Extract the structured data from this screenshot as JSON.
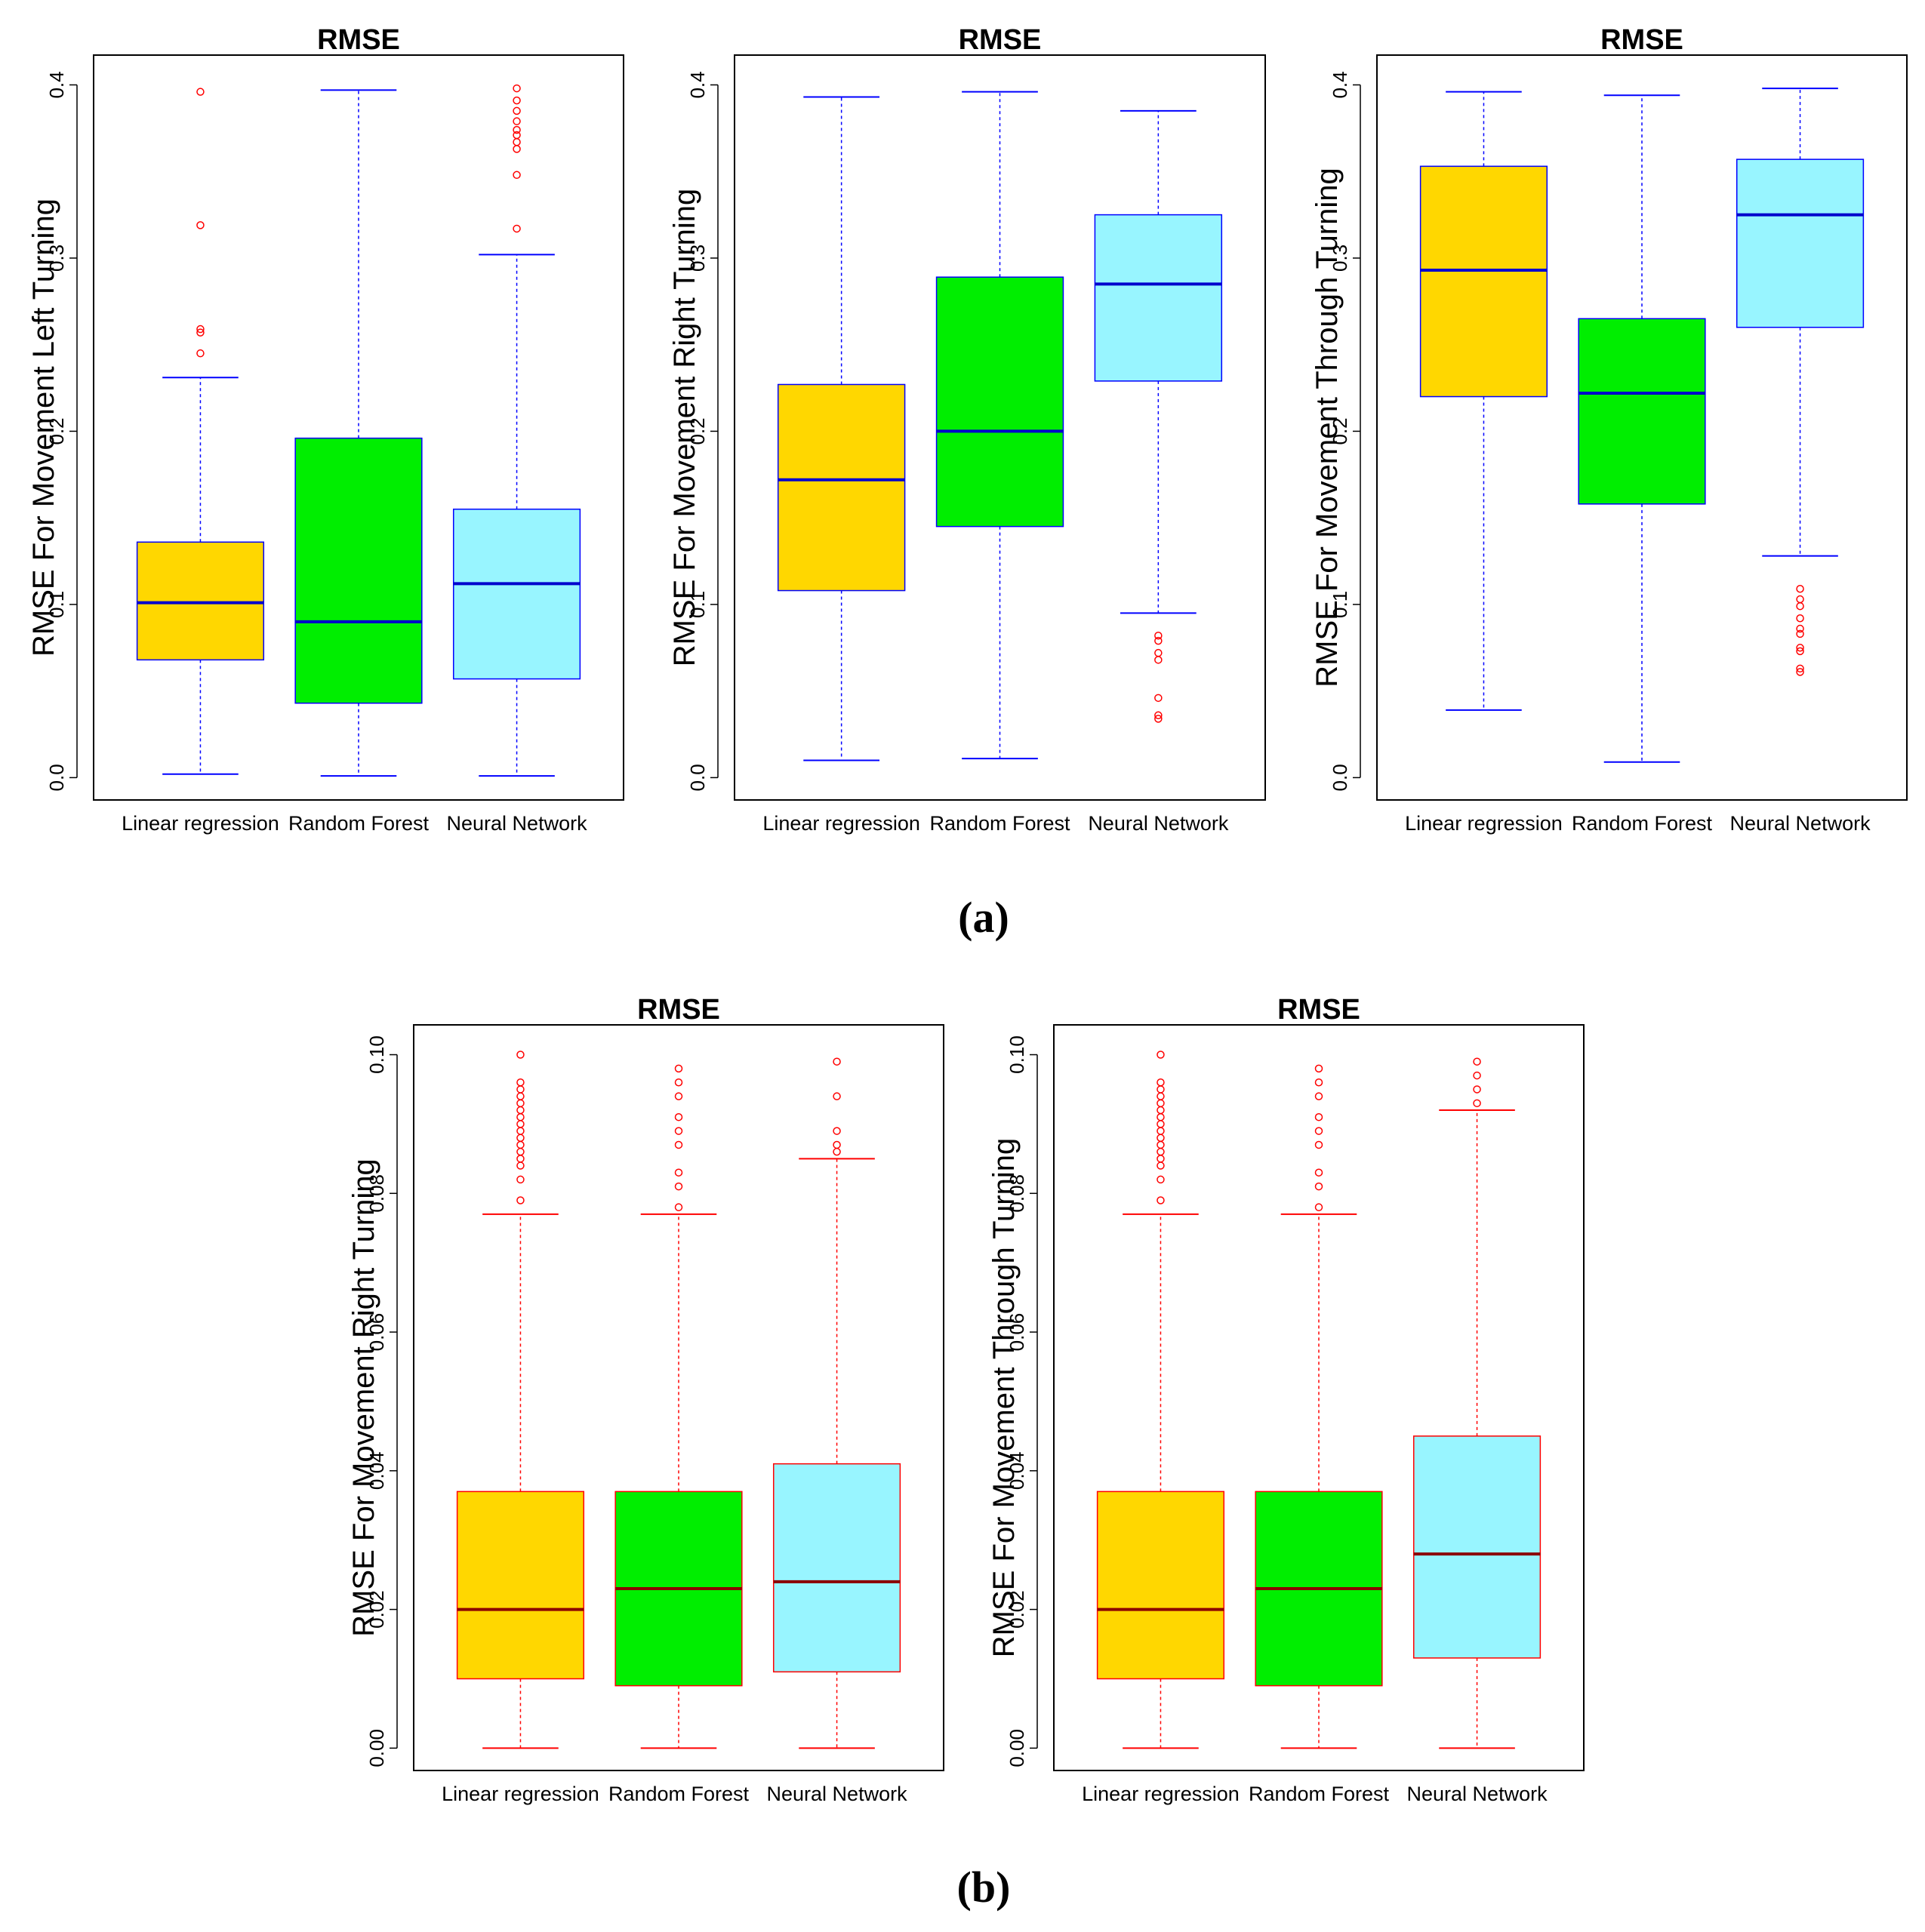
{
  "captions": [
    "(a)",
    "(b)"
  ],
  "chart_data": [
    {
      "type": "boxplot",
      "title": "RMSE",
      "ylabel": "RMSE For Movement Left Turning",
      "ylim": [
        0.0,
        0.4
      ],
      "yticks": [
        0.0,
        0.1,
        0.2,
        0.3,
        0.4
      ],
      "tick_labels": [
        "0.0",
        "0.1",
        "0.2",
        "0.3",
        "0.4"
      ],
      "categories": [
        "Linear regression",
        "Random Forest",
        "Neural Network"
      ],
      "colors": [
        "#FFD700",
        "#00EE00",
        "#98F5FF"
      ],
      "median_color": "#0000CD",
      "whisker_color": "#0000FF",
      "outlier_color": "#FF0000",
      "boxes": [
        {
          "min": 0.002,
          "q1": 0.068,
          "median": 0.101,
          "q3": 0.136,
          "max": 0.231,
          "outliers": [
            0.245,
            0.257,
            0.259,
            0.319,
            0.396
          ]
        },
        {
          "min": 0.001,
          "q1": 0.043,
          "median": 0.09,
          "q3": 0.196,
          "max": 0.397,
          "outliers": []
        },
        {
          "min": 0.001,
          "q1": 0.057,
          "median": 0.112,
          "q3": 0.155,
          "max": 0.302,
          "outliers": [
            0.317,
            0.348,
            0.363,
            0.367,
            0.371,
            0.374,
            0.379,
            0.385,
            0.391,
            0.398
          ]
        }
      ]
    },
    {
      "type": "boxplot",
      "title": "RMSE",
      "ylabel": "RMSE For Movement Right Turning",
      "ylim": [
        0.0,
        0.4
      ],
      "yticks": [
        0.0,
        0.1,
        0.2,
        0.3,
        0.4
      ],
      "tick_labels": [
        "0.0",
        "0.1",
        "0.2",
        "0.3",
        "0.4"
      ],
      "categories": [
        "Linear regression",
        "Random Forest",
        "Neural Network"
      ],
      "colors": [
        "#FFD700",
        "#00EE00",
        "#98F5FF"
      ],
      "median_color": "#0000CD",
      "whisker_color": "#0000FF",
      "outlier_color": "#FF0000",
      "boxes": [
        {
          "min": 0.01,
          "q1": 0.108,
          "median": 0.172,
          "q3": 0.227,
          "max": 0.393,
          "outliers": []
        },
        {
          "min": 0.011,
          "q1": 0.145,
          "median": 0.2,
          "q3": 0.289,
          "max": 0.396,
          "outliers": []
        },
        {
          "min": 0.095,
          "q1": 0.229,
          "median": 0.285,
          "q3": 0.325,
          "max": 0.385,
          "outliers": [
            0.034,
            0.036,
            0.046,
            0.068,
            0.072,
            0.079,
            0.082
          ]
        }
      ]
    },
    {
      "type": "boxplot",
      "title": "RMSE",
      "ylabel": "RMSE For Movement Through Turning",
      "ylim": [
        0.0,
        0.4
      ],
      "yticks": [
        0.0,
        0.1,
        0.2,
        0.3,
        0.4
      ],
      "tick_labels": [
        "0.0",
        "0.1",
        "0.2",
        "0.3",
        "0.4"
      ],
      "categories": [
        "Linear regression",
        "Random Forest",
        "Neural Network"
      ],
      "colors": [
        "#FFD700",
        "#00EE00",
        "#98F5FF"
      ],
      "median_color": "#0000CD",
      "whisker_color": "#0000FF",
      "outlier_color": "#FF0000",
      "boxes": [
        {
          "min": 0.039,
          "q1": 0.22,
          "median": 0.293,
          "q3": 0.353,
          "max": 0.396,
          "outliers": []
        },
        {
          "min": 0.009,
          "q1": 0.158,
          "median": 0.222,
          "q3": 0.265,
          "max": 0.394,
          "outliers": []
        },
        {
          "min": 0.128,
          "q1": 0.26,
          "median": 0.325,
          "q3": 0.357,
          "max": 0.398,
          "outliers": [
            0.061,
            0.063,
            0.073,
            0.075,
            0.083,
            0.086,
            0.092,
            0.099,
            0.103,
            0.109
          ]
        }
      ]
    },
    {
      "type": "boxplot",
      "title": "RMSE",
      "ylabel": "RMSE For Movement Right Turning",
      "ylim": [
        0.0,
        0.1
      ],
      "yticks": [
        0.0,
        0.02,
        0.04,
        0.06,
        0.08,
        0.1
      ],
      "tick_labels": [
        "0.00",
        "0.02",
        "0.04",
        "0.06",
        "0.08",
        "0.10"
      ],
      "categories": [
        "Linear regression",
        "Random Forest",
        "Neural Network"
      ],
      "colors": [
        "#FFD700",
        "#00EE00",
        "#98F5FF"
      ],
      "median_color": "#8B0000",
      "whisker_color": "#FF0000",
      "outlier_color": "#FF0000",
      "boxes": [
        {
          "min": 0.0,
          "q1": 0.01,
          "median": 0.02,
          "q3": 0.037,
          "max": 0.077,
          "outliers": [
            0.079,
            0.082,
            0.084,
            0.085,
            0.086,
            0.087,
            0.088,
            0.089,
            0.09,
            0.091,
            0.092,
            0.093,
            0.094,
            0.095,
            0.096,
            0.1
          ]
        },
        {
          "min": 0.0,
          "q1": 0.009,
          "median": 0.023,
          "q3": 0.037,
          "max": 0.077,
          "outliers": [
            0.078,
            0.081,
            0.083,
            0.087,
            0.089,
            0.091,
            0.094,
            0.096,
            0.098
          ]
        },
        {
          "min": 0.0,
          "q1": 0.011,
          "median": 0.024,
          "q3": 0.041,
          "max": 0.085,
          "outliers": [
            0.086,
            0.087,
            0.089,
            0.094,
            0.099
          ]
        }
      ]
    },
    {
      "type": "boxplot",
      "title": "RMSE",
      "ylabel": "RMSE For Movement Through Turning",
      "ylim": [
        0.0,
        0.1
      ],
      "yticks": [
        0.0,
        0.02,
        0.04,
        0.06,
        0.08,
        0.1
      ],
      "tick_labels": [
        "0.00",
        "0.02",
        "0.04",
        "0.06",
        "0.08",
        "0.10"
      ],
      "categories": [
        "Linear regression",
        "Random Forest",
        "Neural Network"
      ],
      "colors": [
        "#FFD700",
        "#00EE00",
        "#98F5FF"
      ],
      "median_color": "#8B0000",
      "whisker_color": "#FF0000",
      "outlier_color": "#FF0000",
      "boxes": [
        {
          "min": 0.0,
          "q1": 0.01,
          "median": 0.02,
          "q3": 0.037,
          "max": 0.077,
          "outliers": [
            0.079,
            0.082,
            0.084,
            0.085,
            0.086,
            0.087,
            0.088,
            0.089,
            0.09,
            0.091,
            0.092,
            0.093,
            0.094,
            0.095,
            0.096,
            0.1
          ]
        },
        {
          "min": 0.0,
          "q1": 0.009,
          "median": 0.023,
          "q3": 0.037,
          "max": 0.077,
          "outliers": [
            0.078,
            0.081,
            0.083,
            0.087,
            0.089,
            0.091,
            0.094,
            0.096,
            0.098
          ]
        },
        {
          "min": 0.0,
          "q1": 0.013,
          "median": 0.028,
          "q3": 0.045,
          "max": 0.092,
          "outliers": [
            0.093,
            0.095,
            0.097,
            0.099
          ]
        }
      ]
    }
  ]
}
